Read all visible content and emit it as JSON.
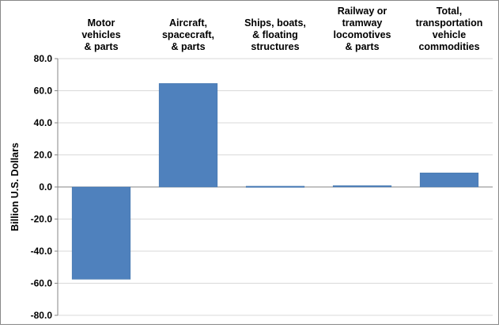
{
  "chart_data": {
    "type": "bar",
    "title": "",
    "xlabel": "",
    "ylabel": "Billion U.S. Dollars",
    "categories": [
      [
        "Motor",
        "vehicles",
        "& parts"
      ],
      [
        "Aircraft,",
        "spacecraft,",
        "& parts"
      ],
      [
        "Ships, boats,",
        "& floating",
        "structures"
      ],
      [
        "Railway or",
        "tramway",
        "locomotives",
        "& parts"
      ],
      [
        "Total,",
        "transportation",
        "vehicle",
        "commodities"
      ]
    ],
    "values": [
      -57.5,
      64.5,
      0.5,
      0.8,
      8.8
    ],
    "ylim": [
      -80,
      80
    ],
    "yticks": [
      "-80.0",
      "-60.0",
      "-40.0",
      "-20.0",
      "0.0",
      "20.0",
      "40.0",
      "60.0",
      "80.0"
    ],
    "grid": true,
    "legend": "none",
    "bar_color": "#4F81BD",
    "gridline_color": "#D9D9D9"
  }
}
